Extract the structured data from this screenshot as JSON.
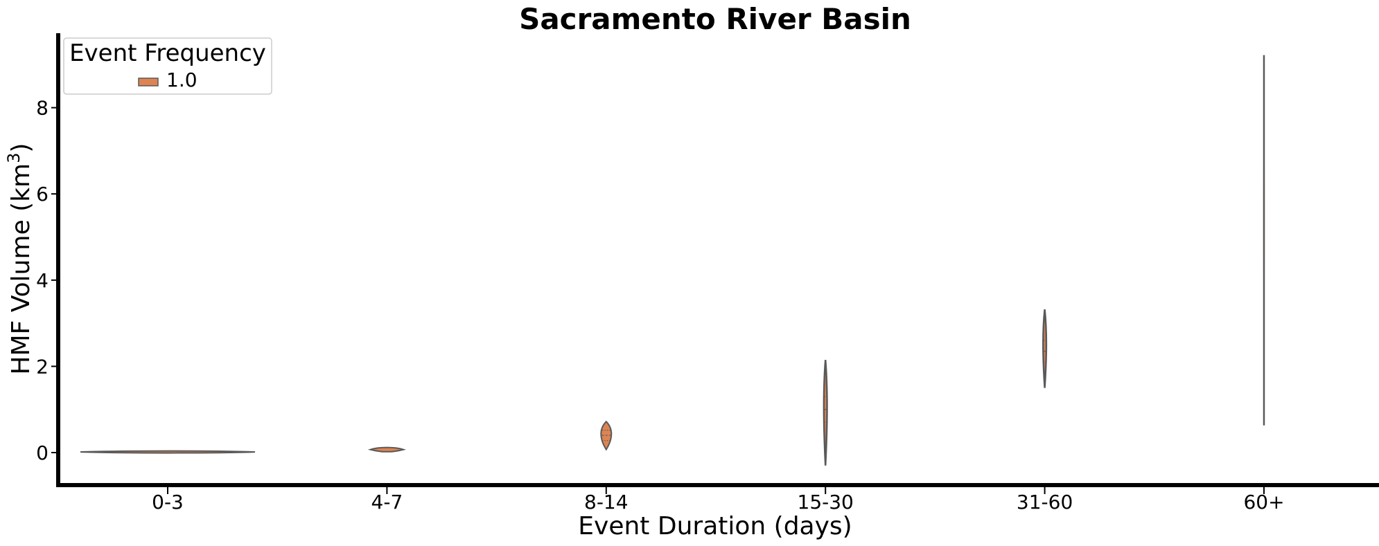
{
  "chart_data": {
    "type": "violin",
    "title": "Sacramento River Basin",
    "xlabel": "Event Duration (days)",
    "ylabel": "HMF Volume (km",
    "ylabel_sup": "3",
    "ylabel_close": ")",
    "categories": [
      "0-3",
      "4-7",
      "8-14",
      "15-30",
      "31-60",
      "60+"
    ],
    "yticks": [
      "0",
      "2",
      "4",
      "6",
      "8"
    ],
    "ylim": [
      -0.8,
      9.8
    ],
    "grid": false,
    "legend": {
      "title": "Event Frequency",
      "placement": "top-left",
      "entries": [
        {
          "label": "1.0",
          "color": "#dd8452"
        }
      ]
    },
    "series": [
      {
        "category": "0-3",
        "min": 0.0,
        "max": 0.04,
        "median": 0.015,
        "q1": 0.01,
        "q3": 0.02
      },
      {
        "category": "4-7",
        "min": 0.02,
        "max": 0.1,
        "median": 0.07,
        "q1": 0.05,
        "q3": 0.08
      },
      {
        "category": "8-14",
        "min": 0.07,
        "max": 0.72,
        "median": 0.4,
        "q1": 0.28,
        "q3": 0.52
      },
      {
        "category": "15-30",
        "min": -0.3,
        "max": 2.15,
        "median": 1.0,
        "q1": 0.7,
        "q3": 1.3
      },
      {
        "category": "31-60",
        "min": 1.5,
        "max": 3.32,
        "median": 2.35,
        "q1": 2.1,
        "q3": 2.6
      },
      {
        "category": "60+",
        "min": 0.63,
        "max": 9.22,
        "median": 5.0,
        "q1": 3.0,
        "q3": 7.0
      }
    ],
    "colors": {
      "fill": "#dd8452",
      "edge": "#595959",
      "axis": "#000000"
    }
  }
}
